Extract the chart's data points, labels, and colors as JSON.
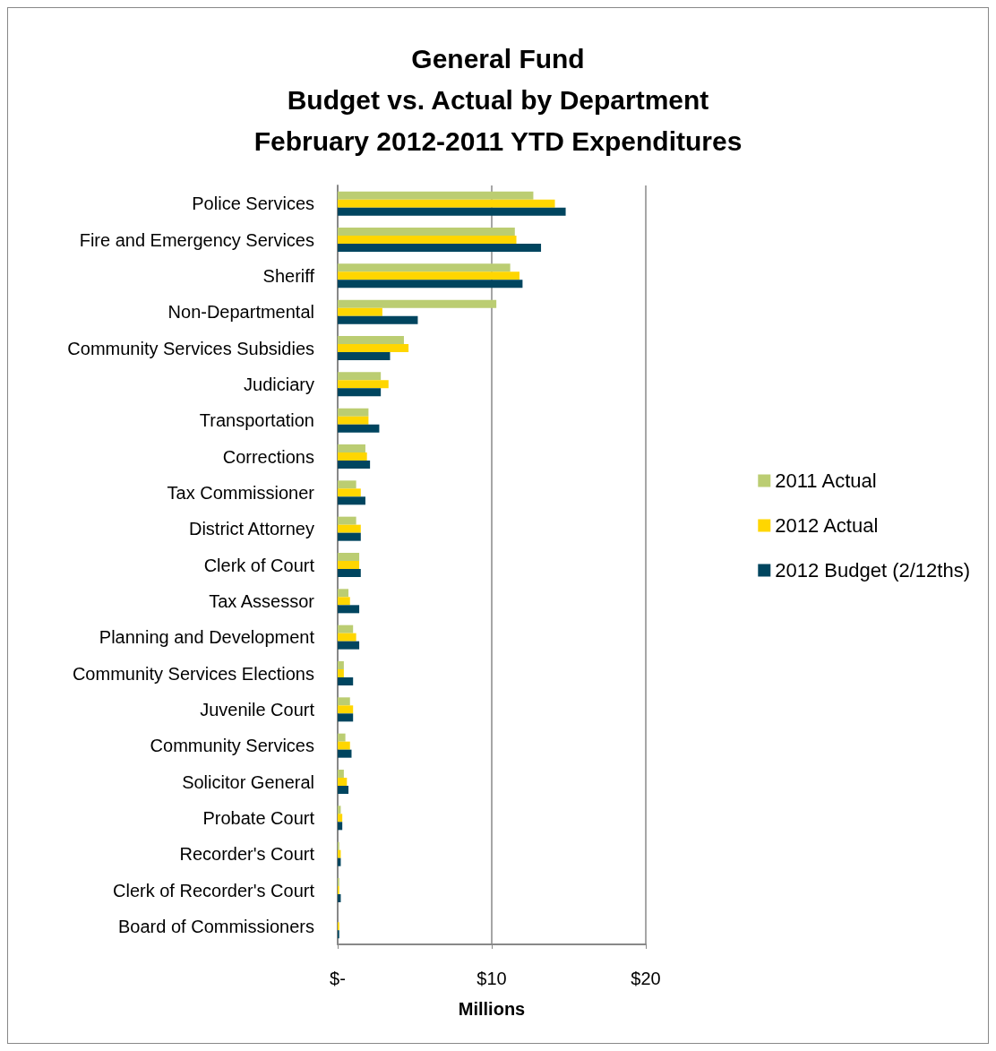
{
  "chart_data": {
    "type": "bar",
    "orientation": "horizontal",
    "title": "General Fund\nBudget vs. Actual by Department\nFebruary 2012-2011 YTD Expenditures",
    "xlabel": "Millions",
    "categories": [
      "Police Services",
      "Fire and Emergency Services",
      "Sheriff",
      "Non-Departmental",
      "Community Services Subsidies",
      "Judiciary",
      "Transportation",
      "Corrections",
      "Tax Commissioner",
      "District Attorney",
      "Clerk of Court",
      "Tax Assessor",
      "Planning and Development",
      "Community Services Elections",
      "Juvenile Court",
      "Community Services",
      "Solicitor General",
      "Probate Court",
      "Recorder's Court",
      "Clerk of Recorder's Court",
      "Board of Commissioners"
    ],
    "series": [
      {
        "name": "2011 Actual",
        "color": "#bbcd72",
        "values": [
          12.7,
          11.5,
          11.2,
          10.3,
          4.3,
          2.8,
          2.0,
          1.8,
          1.2,
          1.2,
          1.4,
          0.7,
          1.0,
          0.4,
          0.8,
          0.5,
          0.4,
          0.2,
          0.1,
          0.1,
          0
        ]
      },
      {
        "name": "2012 Actual",
        "color": "#ffd600",
        "values": [
          14.1,
          11.6,
          11.8,
          2.9,
          4.6,
          3.3,
          2.0,
          1.9,
          1.5,
          1.5,
          1.4,
          0.8,
          1.2,
          0.4,
          1.0,
          0.8,
          0.6,
          0.3,
          0.2,
          0.1,
          0.1
        ]
      },
      {
        "name": "2012 Budget (2/12ths)",
        "color": "#00455f",
        "values": [
          14.8,
          13.2,
          12.0,
          5.2,
          3.4,
          2.8,
          2.7,
          2.1,
          1.8,
          1.5,
          1.5,
          1.4,
          1.4,
          1.0,
          1.0,
          0.9,
          0.7,
          0.3,
          0.2,
          0.2,
          0.1
        ]
      }
    ],
    "xlim": [
      0,
      20
    ],
    "xticks": [
      {
        "value": 0,
        "label": "$-"
      },
      {
        "value": 10,
        "label": "$10"
      },
      {
        "value": 20,
        "label": "$20"
      }
    ],
    "grid": "x",
    "legend": "right"
  }
}
